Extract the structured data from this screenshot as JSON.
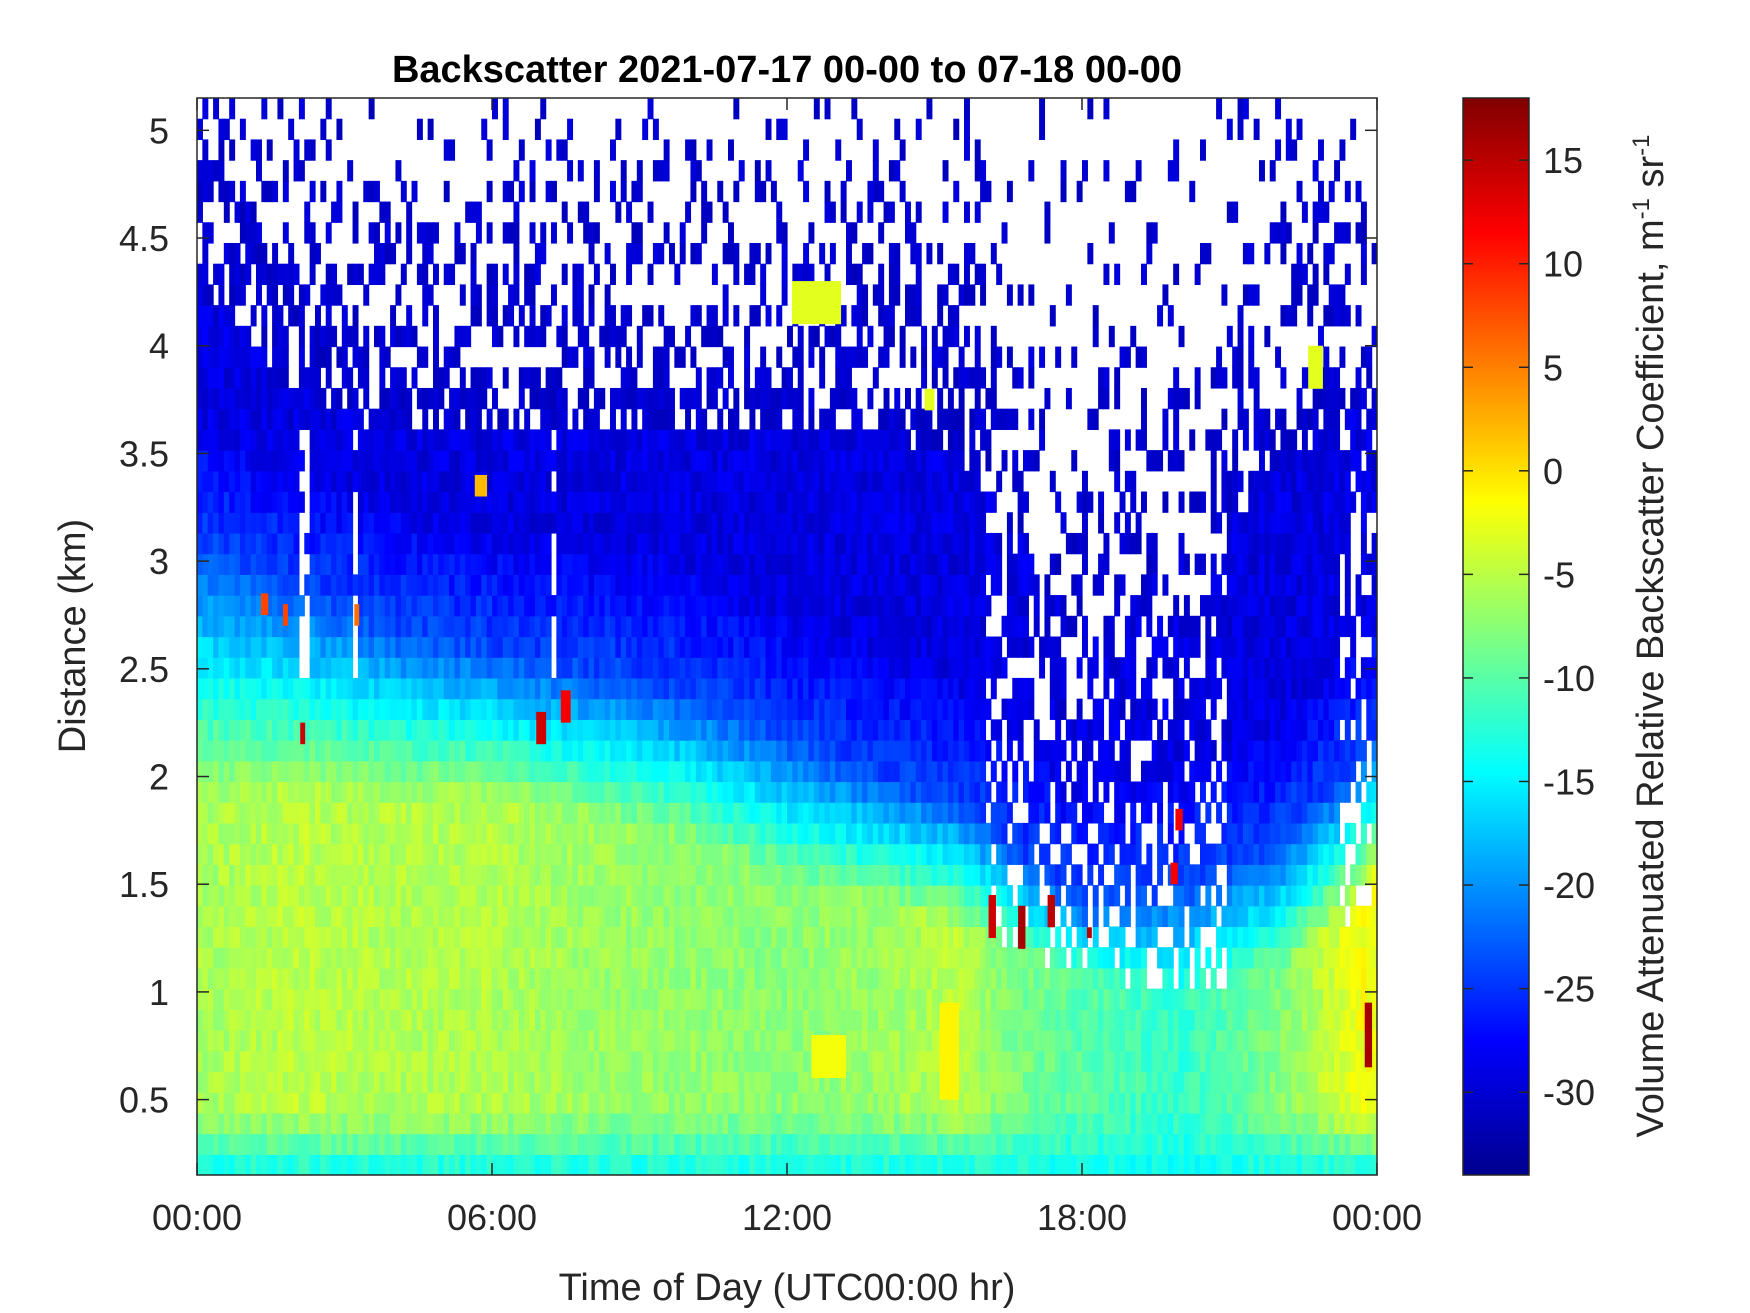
{
  "chart_data": {
    "type": "heatmap",
    "title": "Backscatter 2021-07-17 00-00 to 07-18 00-00",
    "xlabel": "Time of Day (UTC00:00 hr)",
    "ylabel": "Distance (km)",
    "colorbar_label_main": "Volume Attenuated Relative Backscatter Coefficient, m",
    "colorbar_label_sr": "sr",
    "colorbar_label_exp": "-1",
    "x_unit": "hours",
    "xlim": [
      0,
      24
    ],
    "ylim": [
      0.15,
      5.15
    ],
    "clim": [
      -34,
      18
    ],
    "colormap": "jet",
    "x_ticks": [
      {
        "value": 0,
        "label": "00:00"
      },
      {
        "value": 6,
        "label": "06:00"
      },
      {
        "value": 12,
        "label": "12:00"
      },
      {
        "value": 18,
        "label": "18:00"
      },
      {
        "value": 24,
        "label": "00:00"
      }
    ],
    "y_ticks": [
      {
        "value": 0.5,
        "label": "0.5"
      },
      {
        "value": 1,
        "label": "1"
      },
      {
        "value": 1.5,
        "label": "1.5"
      },
      {
        "value": 2,
        "label": "2"
      },
      {
        "value": 2.5,
        "label": "2.5"
      },
      {
        "value": 3,
        "label": "3"
      },
      {
        "value": 3.5,
        "label": "3.5"
      },
      {
        "value": 4,
        "label": "4"
      },
      {
        "value": 4.5,
        "label": "4.5"
      },
      {
        "value": 5,
        "label": "5"
      }
    ],
    "colorbar_ticks": [
      {
        "value": 15,
        "label": "15"
      },
      {
        "value": 10,
        "label": "10"
      },
      {
        "value": 5,
        "label": "5"
      },
      {
        "value": 0,
        "label": "0"
      },
      {
        "value": -5,
        "label": "-5"
      },
      {
        "value": -10,
        "label": "-10"
      },
      {
        "value": -15,
        "label": "-15"
      },
      {
        "value": -20,
        "label": "-20"
      },
      {
        "value": -25,
        "label": "-25"
      },
      {
        "value": -30,
        "label": "-30"
      }
    ],
    "no_data_color": "#ffffff",
    "profile_model": {
      "time_hours": [
        0,
        2,
        4,
        6,
        8,
        10,
        12,
        14,
        15.5,
        16.5,
        18,
        20,
        22,
        23.7,
        24
      ],
      "surface_value": -14,
      "boundary_layer_value": [
        -6,
        -5,
        -5.5,
        -5.5,
        -6.5,
        -7,
        -7.5,
        -6.5,
        -5,
        -8,
        -10,
        -12,
        -8,
        -2,
        -2
      ],
      "boundary_layer_top_km": [
        1.9,
        1.9,
        1.9,
        1.9,
        1.8,
        1.7,
        1.5,
        1.4,
        1.3,
        1.2,
        1.1,
        1.0,
        1.1,
        1.4,
        1.5
      ],
      "mixed_layer_top_km": [
        3.1,
        2.9,
        2.7,
        2.6,
        2.5,
        2.4,
        2.2,
        2.0,
        1.9,
        1.7,
        1.4,
        1.5,
        1.7,
        2.1,
        2.2
      ],
      "free_troposphere_value": -30,
      "data_ceiling_km": [
        4.3,
        3.8,
        3.6,
        3.6,
        3.6,
        3.6,
        3.6,
        3.6,
        3.5,
        3.2,
        2.6,
        3.0,
        3.4,
        3.8,
        3.8
      ]
    },
    "features": [
      {
        "kind": "aerosol_patch",
        "x_range": [
          12.1,
          13.1
        ],
        "y_range": [
          4.1,
          4.3
        ],
        "value": -3
      },
      {
        "kind": "aerosol_patch",
        "x_range": [
          22.6,
          22.9
        ],
        "y_range": [
          3.8,
          4.0
        ],
        "value": -3
      },
      {
        "kind": "aerosol_patch",
        "x_range": [
          14.8,
          15.0
        ],
        "y_range": [
          3.7,
          3.8
        ],
        "value": -3
      },
      {
        "kind": "aerosol_patch",
        "x_range": [
          5.65,
          5.9
        ],
        "y_range": [
          3.3,
          3.4
        ],
        "value": 2
      },
      {
        "kind": "aerosol_patch",
        "x_range": [
          1.3,
          1.45
        ],
        "y_range": [
          2.75,
          2.85
        ],
        "value": 8
      },
      {
        "kind": "aerosol_patch",
        "x_range": [
          1.75,
          1.85
        ],
        "y_range": [
          2.7,
          2.8
        ],
        "value": 8
      },
      {
        "kind": "aerosol_patch",
        "x_range": [
          3.2,
          3.3
        ],
        "y_range": [
          2.7,
          2.8
        ],
        "value": 6
      },
      {
        "kind": "aerosol_patch",
        "x_range": [
          2.1,
          2.2
        ],
        "y_range": [
          2.15,
          2.25
        ],
        "value": 14
      },
      {
        "kind": "aerosol_patch",
        "x_range": [
          6.9,
          7.1
        ],
        "y_range": [
          2.15,
          2.3
        ],
        "value": 14
      },
      {
        "kind": "aerosol_patch",
        "x_range": [
          7.4,
          7.6
        ],
        "y_range": [
          2.25,
          2.4
        ],
        "value": 12
      },
      {
        "kind": "aerosol_patch",
        "x_range": [
          16.1,
          16.25
        ],
        "y_range": [
          1.25,
          1.45
        ],
        "value": 14
      },
      {
        "kind": "aerosol_patch",
        "x_range": [
          16.7,
          16.85
        ],
        "y_range": [
          1.2,
          1.4
        ],
        "value": 16
      },
      {
        "kind": "aerosol_patch",
        "x_range": [
          17.3,
          17.45
        ],
        "y_range": [
          1.3,
          1.45
        ],
        "value": 15
      },
      {
        "kind": "aerosol_patch",
        "x_range": [
          18.1,
          18.2
        ],
        "y_range": [
          1.25,
          1.3
        ],
        "value": 15
      },
      {
        "kind": "aerosol_patch",
        "x_range": [
          19.8,
          19.95
        ],
        "y_range": [
          1.5,
          1.6
        ],
        "value": 12
      },
      {
        "kind": "aerosol_patch",
        "x_range": [
          19.9,
          20.05
        ],
        "y_range": [
          1.75,
          1.85
        ],
        "value": 12
      },
      {
        "kind": "aerosol_patch",
        "x_range": [
          23.75,
          23.9
        ],
        "y_range": [
          0.65,
          0.95
        ],
        "value": 16
      },
      {
        "kind": "aerosol_patch",
        "x_range": [
          15.1,
          15.5
        ],
        "y_range": [
          0.5,
          0.95
        ],
        "value": -1
      },
      {
        "kind": "aerosol_patch",
        "x_range": [
          12.5,
          13.2
        ],
        "y_range": [
          0.6,
          0.8
        ],
        "value": -2
      }
    ]
  }
}
